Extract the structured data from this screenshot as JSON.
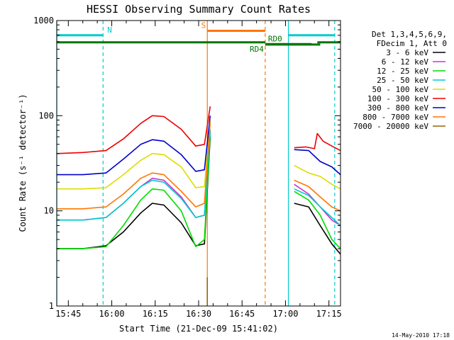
{
  "chart_data": {
    "type": "line",
    "title": "HESSI Observing Summary Count Rates",
    "xlabel": "Start Time (21-Dec-09 15:41:02)",
    "ylabel": "Count Rate (s⁻¹ detector⁻¹)",
    "y_scale": "log",
    "ylim": [
      1,
      1000
    ],
    "xlim": [
      "15:41",
      "17:19"
    ],
    "x_ticks": [
      "15:45",
      "16:00",
      "16:15",
      "16:30",
      "16:45",
      "17:00",
      "17:15"
    ],
    "y_ticks": [
      "1",
      "10",
      "100",
      "1000"
    ],
    "legend_header": [
      "Det 1,3,4,5,6,9,",
      "FDecim 1, Att 0"
    ],
    "legend_position": "right",
    "footer_stamp": "14-May-2010 17:18",
    "series": [
      {
        "name": "3 - 6 keV",
        "color": "#000000",
        "points": [
          [
            "15:41",
            4
          ],
          [
            "15:50",
            4
          ],
          [
            "15:58",
            4.3
          ],
          [
            "16:04",
            6
          ],
          [
            "16:10",
            9.5
          ],
          [
            "16:14",
            12
          ],
          [
            "16:18",
            11.5
          ],
          [
            "16:24",
            7.5
          ],
          [
            "16:29",
            4.3
          ],
          [
            "16:32",
            4.5
          ],
          [
            "16:34",
            60
          ],
          [
            "17:03",
            12
          ],
          [
            "17:08",
            11
          ],
          [
            "17:12",
            7
          ],
          [
            "17:16",
            4.5
          ],
          [
            "17:19",
            3.5
          ]
        ]
      },
      {
        "name": "6 - 12 keV",
        "color": "#cc33cc",
        "points": [
          [
            "15:41",
            8
          ],
          [
            "15:50",
            8
          ],
          [
            "15:58",
            8.5
          ],
          [
            "16:04",
            12
          ],
          [
            "16:10",
            18
          ],
          [
            "16:14",
            22
          ],
          [
            "16:18",
            21
          ],
          [
            "16:24",
            14
          ],
          [
            "16:29",
            8.5
          ],
          [
            "16:32",
            9
          ],
          [
            "16:34",
            70
          ],
          [
            "17:03",
            19
          ],
          [
            "17:08",
            15
          ],
          [
            "17:12",
            11
          ],
          [
            "17:16",
            8
          ],
          [
            "17:19",
            7
          ]
        ]
      },
      {
        "name": "12 - 25 keV",
        "color": "#00dd00",
        "points": [
          [
            "15:41",
            4
          ],
          [
            "15:50",
            4
          ],
          [
            "15:58",
            4.2
          ],
          [
            "16:04",
            7
          ],
          [
            "16:10",
            13
          ],
          [
            "16:14",
            17
          ],
          [
            "16:18",
            16.5
          ],
          [
            "16:24",
            10
          ],
          [
            "16:29",
            4.2
          ],
          [
            "16:32",
            5
          ],
          [
            "16:34",
            65
          ],
          [
            "17:03",
            16
          ],
          [
            "17:08",
            13
          ],
          [
            "17:12",
            9
          ],
          [
            "17:16",
            5
          ],
          [
            "17:19",
            4
          ]
        ]
      },
      {
        "name": "25 - 50 keV",
        "color": "#00cccc",
        "points": [
          [
            "15:41",
            8
          ],
          [
            "15:50",
            8
          ],
          [
            "15:58",
            8.5
          ],
          [
            "16:04",
            12
          ],
          [
            "16:10",
            18
          ],
          [
            "16:14",
            21
          ],
          [
            "16:18",
            20
          ],
          [
            "16:24",
            13.5
          ],
          [
            "16:29",
            8.5
          ],
          [
            "16:32",
            9
          ],
          [
            "16:34",
            72
          ],
          [
            "17:03",
            17
          ],
          [
            "17:08",
            14.5
          ],
          [
            "17:12",
            11
          ],
          [
            "17:16",
            8.5
          ],
          [
            "17:19",
            7
          ]
        ]
      },
      {
        "name": "50 - 100 keV",
        "color": "#dddd00",
        "points": [
          [
            "15:41",
            17
          ],
          [
            "15:50",
            17
          ],
          [
            "15:58",
            17.5
          ],
          [
            "16:04",
            24
          ],
          [
            "16:10",
            34
          ],
          [
            "16:14",
            40
          ],
          [
            "16:18",
            39
          ],
          [
            "16:24",
            29
          ],
          [
            "16:29",
            17.5
          ],
          [
            "16:32",
            18
          ],
          [
            "16:34",
            90
          ],
          [
            "17:03",
            30
          ],
          [
            "17:08",
            25
          ],
          [
            "17:12",
            23
          ],
          [
            "17:16",
            19
          ],
          [
            "17:19",
            17
          ]
        ]
      },
      {
        "name": "100 - 300 keV",
        "color": "#ee0000",
        "points": [
          [
            "15:41",
            40
          ],
          [
            "15:50",
            41
          ],
          [
            "15:58",
            43
          ],
          [
            "16:04",
            57
          ],
          [
            "16:10",
            83
          ],
          [
            "16:14",
            100
          ],
          [
            "16:18",
            98
          ],
          [
            "16:24",
            72
          ],
          [
            "16:29",
            48
          ],
          [
            "16:32",
            50
          ],
          [
            "16:34",
            125
          ],
          [
            "17:03",
            46
          ],
          [
            "17:07",
            47
          ],
          [
            "17:10",
            45
          ],
          [
            "17:11",
            65
          ],
          [
            "17:13",
            54
          ],
          [
            "17:16",
            48
          ],
          [
            "17:19",
            43
          ]
        ]
      },
      {
        "name": "300 - 800 keV",
        "color": "#0000cc",
        "points": [
          [
            "15:41",
            24
          ],
          [
            "15:50",
            24
          ],
          [
            "15:58",
            25
          ],
          [
            "16:04",
            35
          ],
          [
            "16:10",
            50
          ],
          [
            "16:14",
            56
          ],
          [
            "16:18",
            54
          ],
          [
            "16:24",
            39
          ],
          [
            "16:29",
            26
          ],
          [
            "16:32",
            27
          ],
          [
            "16:34",
            100
          ],
          [
            "17:03",
            44
          ],
          [
            "17:08",
            43
          ],
          [
            "17:12",
            33
          ],
          [
            "17:16",
            29
          ],
          [
            "17:19",
            24
          ]
        ]
      },
      {
        "name": "800 - 7000 keV",
        "color": "#ff7700",
        "points": [
          [
            "15:41",
            10.5
          ],
          [
            "15:50",
            10.5
          ],
          [
            "15:58",
            11
          ],
          [
            "16:04",
            15
          ],
          [
            "16:10",
            22
          ],
          [
            "16:14",
            25
          ],
          [
            "16:18",
            24
          ],
          [
            "16:24",
            16
          ],
          [
            "16:29",
            11
          ],
          [
            "16:32",
            12
          ],
          [
            "16:34",
            85
          ],
          [
            "17:03",
            21
          ],
          [
            "17:08",
            18
          ],
          [
            "17:12",
            14
          ],
          [
            "17:16",
            11
          ],
          [
            "17:19",
            10
          ]
        ]
      },
      {
        "name": "7000 - 20000 keV",
        "color": "#996600",
        "points": [
          [
            "16:33",
            1
          ],
          [
            "16:33",
            2
          ]
        ]
      }
    ],
    "vertical_markers": [
      {
        "time": "15:41",
        "color": "#00cccc",
        "style": "solid"
      },
      {
        "time": "15:57",
        "color": "#00cccc",
        "style": "dashed"
      },
      {
        "time": "16:33",
        "color": "#ff7700",
        "style": "solid"
      },
      {
        "time": "16:53",
        "color": "#ff7700",
        "style": "dashed"
      },
      {
        "time": "17:01",
        "color": "#00cccc",
        "style": "solid"
      },
      {
        "time": "17:17",
        "color": "#00cccc",
        "style": "dashed"
      }
    ],
    "flag_bars": [
      {
        "label": "N",
        "color": "#00cccc",
        "level": 700,
        "segments": [
          [
            "15:41",
            "15:57"
          ],
          [
            "17:01",
            "17:17"
          ]
        ]
      },
      {
        "label": "S",
        "color": "#ff7700",
        "level": 780,
        "segments": [
          [
            "16:33",
            "16:53"
          ]
        ]
      },
      {
        "label": "",
        "color": "#007700",
        "level": 590,
        "segments": [
          [
            "15:41",
            "16:53"
          ]
        ]
      },
      {
        "label": "RD0",
        "color": "#007700",
        "level": 565,
        "segments": [
          [
            "16:53",
            "17:09"
          ]
        ]
      },
      {
        "label": "RD4",
        "color": "#007700",
        "level": 560,
        "segments": [
          [
            "16:53",
            "17:12"
          ]
        ]
      },
      {
        "label": "",
        "color": "#007700",
        "level": 590,
        "segments": [
          [
            "17:11",
            "17:19"
          ]
        ]
      }
    ]
  }
}
